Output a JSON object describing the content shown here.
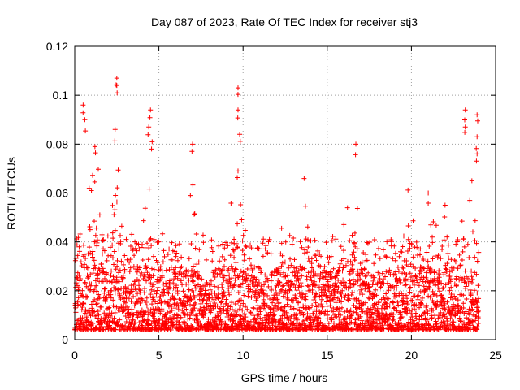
{
  "chart_data": {
    "type": "scatter",
    "title": "Day 087 of 2023, Rate Of TEC Index for receiver stj3",
    "xlabel": "GPS time / hours",
    "ylabel": "ROTI / TECUs",
    "xlim": [
      0,
      25
    ],
    "ylim": [
      0,
      0.12
    ],
    "x_ticks": [
      0,
      5,
      10,
      15,
      20,
      25
    ],
    "x_tick_labels": [
      "0",
      "5",
      "10",
      "15",
      "20",
      "25"
    ],
    "y_ticks": [
      0,
      0.02,
      0.04,
      0.06,
      0.08,
      0.1,
      0.12
    ],
    "y_tick_labels": [
      "0",
      "0.02",
      "0.04",
      "0.06",
      "0.08",
      "0.1",
      "0.12"
    ],
    "grid": true,
    "legend": "none",
    "marker": "plus",
    "series": [
      {
        "name": "ROTI",
        "color": "#ff0000",
        "sample_x_range": [
          0,
          24
        ],
        "bulk_range": [
          0.004,
          0.03
        ],
        "typical_peak": 0.045,
        "notable_points": [
          {
            "x": 0.5,
            "y": 0.096
          },
          {
            "x": 0.6,
            "y": 0.09
          },
          {
            "x": 1.2,
            "y": 0.079
          },
          {
            "x": 2.5,
            "y": 0.107
          },
          {
            "x": 2.5,
            "y": 0.104
          },
          {
            "x": 2.4,
            "y": 0.086
          },
          {
            "x": 4.5,
            "y": 0.094
          },
          {
            "x": 4.4,
            "y": 0.087
          },
          {
            "x": 4.6,
            "y": 0.081
          },
          {
            "x": 7.0,
            "y": 0.08
          },
          {
            "x": 9.7,
            "y": 0.103
          },
          {
            "x": 9.7,
            "y": 0.094
          },
          {
            "x": 9.8,
            "y": 0.084
          },
          {
            "x": 9.7,
            "y": 0.069
          },
          {
            "x": 16.7,
            "y": 0.08
          },
          {
            "x": 23.2,
            "y": 0.094
          },
          {
            "x": 23.2,
            "y": 0.087
          },
          {
            "x": 23.9,
            "y": 0.092
          },
          {
            "x": 23.9,
            "y": 0.083
          },
          {
            "x": 23.9,
            "y": 0.076
          },
          {
            "x": 21.0,
            "y": 0.06
          },
          {
            "x": 22.0,
            "y": 0.055
          }
        ],
        "active_periods": [
          {
            "x": 0.5,
            "amp": 0.05
          },
          {
            "x": 1.2,
            "amp": 0.045
          },
          {
            "x": 2.5,
            "amp": 0.055
          },
          {
            "x": 4.5,
            "amp": 0.05
          },
          {
            "x": 7.0,
            "amp": 0.04
          },
          {
            "x": 9.7,
            "amp": 0.045
          },
          {
            "x": 12.0,
            "amp": 0.035
          },
          {
            "x": 13.8,
            "amp": 0.035
          },
          {
            "x": 16.5,
            "amp": 0.04
          },
          {
            "x": 19.8,
            "amp": 0.035
          },
          {
            "x": 21.2,
            "amp": 0.04
          },
          {
            "x": 23.5,
            "amp": 0.05
          }
        ]
      }
    ]
  }
}
